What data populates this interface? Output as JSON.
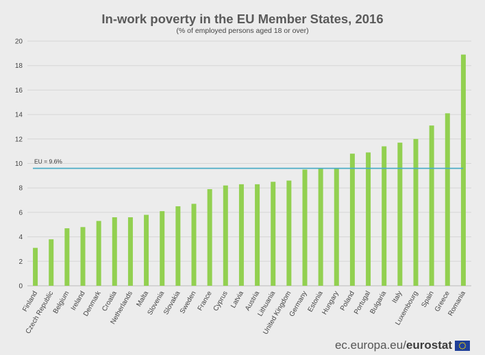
{
  "chart_data": {
    "type": "bar",
    "title": "In-work poverty in the EU Member States, 2016",
    "subtitle": "(% of employed persons aged 18 or over)",
    "categories": [
      "Finland",
      "Czech Republic",
      "Belgium",
      "Ireland",
      "Denmark",
      "Croatia",
      "Netherlands",
      "Malta",
      "Slovenia",
      "Slovakia",
      "Sweden",
      "France",
      "Cyprus",
      "Latvia",
      "Austria",
      "Lithuania",
      "United Kingdom",
      "Germany",
      "Estonia",
      "Hungary",
      "Poland",
      "Portugal",
      "Bulgaria",
      "Italy",
      "Luxembourg",
      "Spain",
      "Greece",
      "Romania"
    ],
    "values": [
      3.1,
      3.8,
      4.7,
      4.8,
      5.3,
      5.6,
      5.6,
      5.8,
      6.1,
      6.5,
      6.7,
      7.9,
      8.2,
      8.3,
      8.3,
      8.5,
      8.6,
      9.5,
      9.6,
      9.6,
      10.8,
      10.9,
      11.4,
      11.7,
      12.0,
      13.1,
      14.1,
      18.9
    ],
    "ylim": [
      0,
      20
    ],
    "yticks": [
      0,
      2,
      4,
      6,
      8,
      10,
      12,
      14,
      16,
      18,
      20
    ],
    "reference_line": {
      "label": "EU = 9.6%",
      "value": 9.6
    },
    "bar_color": "#92d050",
    "line_color": "#4bacc6",
    "grid": true
  },
  "footer": {
    "url": "ec.europa.eu/",
    "brand": "eurostat"
  }
}
